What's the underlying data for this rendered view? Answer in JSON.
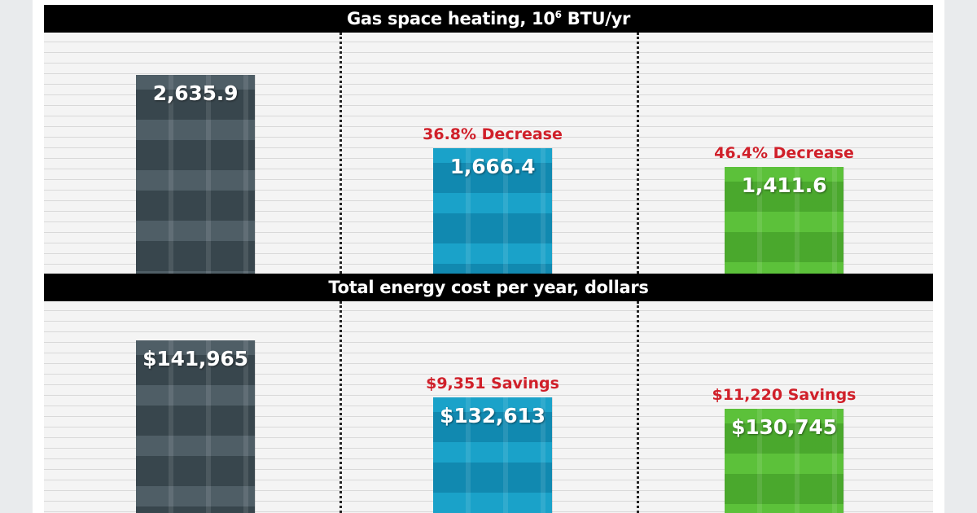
{
  "colors": {
    "baseline": "#4f5e66",
    "option_a": "#1aa2c9",
    "option_b": "#5cc13a",
    "annotation": "#d0202a"
  },
  "chart_data": [
    {
      "type": "bar",
      "title": "Gas space heating, 10",
      "title_superscript": "6",
      "title_suffix": " BTU/yr",
      "categories": [
        "",
        "",
        ""
      ],
      "values": [
        2635.9,
        1666.4,
        1411.6
      ],
      "value_labels": [
        "2,635.9",
        "1,666.4",
        "1,411.6"
      ],
      "annotations": [
        "",
        "36.8% Decrease",
        "46.4% Decrease"
      ],
      "ylim": [
        0,
        3200
      ],
      "grid": true
    },
    {
      "type": "bar",
      "title": "Total energy cost per year, dollars",
      "categories": [
        "",
        "",
        ""
      ],
      "values": [
        141965,
        132613,
        130745
      ],
      "value_labels": [
        "$141,965",
        "$132,613",
        "$130,745"
      ],
      "annotations": [
        "",
        "$9,351 Savings",
        "$11,220 Savings"
      ],
      "ylim": [
        0,
        142000
      ],
      "grid": true
    }
  ]
}
